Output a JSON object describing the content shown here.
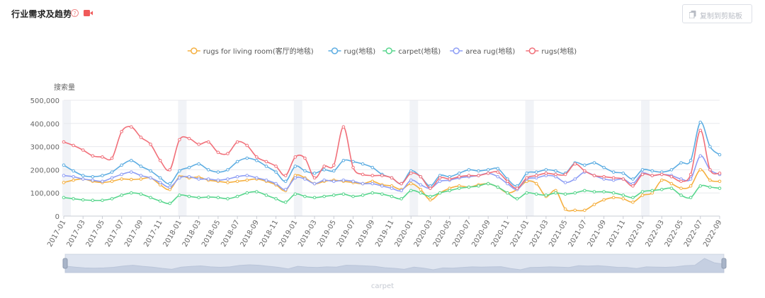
{
  "header": {
    "title": "行业需求及趋势",
    "help_icon": "question-circle-icon",
    "video_icon": "video-camera-icon",
    "accent_color": "#f05a5a"
  },
  "toolbar": {
    "copy_label": "复制到剪贴板",
    "copy_icon": "clipboard-icon"
  },
  "chart_data": {
    "type": "line",
    "ylabel": "搜索量",
    "xlabel": "",
    "ylim": [
      0,
      500000
    ],
    "yticks": [
      "0",
      "100,000",
      "200,000",
      "300,000",
      "400,000",
      "500,000"
    ],
    "grid": true,
    "legend": "top-center",
    "smooth": true,
    "x_tick_labels": [
      "2017-01",
      "2017-03",
      "2017-05",
      "2017-07",
      "2017-09",
      "2017-11",
      "2018-01",
      "2018-03",
      "2018-05",
      "2018-07",
      "2018-09",
      "2018-11",
      "2019-01",
      "2019-03",
      "2019-05",
      "2019-07",
      "2019-09",
      "2019-11",
      "2020-01",
      "2020-03",
      "2020-05",
      "2020-07",
      "2020-09",
      "2020-11",
      "2021-01",
      "2021-03",
      "2021-05",
      "2021-07",
      "2021-09",
      "2021-11",
      "2022-01",
      "2022-03",
      "2022-05",
      "2022-07",
      "2022-09"
    ],
    "months": [
      "2017-01",
      "2017-02",
      "2017-03",
      "2017-04",
      "2017-05",
      "2017-06",
      "2017-07",
      "2017-08",
      "2017-09",
      "2017-10",
      "2017-11",
      "2017-12",
      "2018-01",
      "2018-02",
      "2018-03",
      "2018-04",
      "2018-05",
      "2018-06",
      "2018-07",
      "2018-08",
      "2018-09",
      "2018-10",
      "2018-11",
      "2018-12",
      "2019-01",
      "2019-02",
      "2019-03",
      "2019-04",
      "2019-05",
      "2019-06",
      "2019-07",
      "2019-08",
      "2019-09",
      "2019-10",
      "2019-11",
      "2019-12",
      "2020-01",
      "2020-02",
      "2020-03",
      "2020-04",
      "2020-05",
      "2020-06",
      "2020-07",
      "2020-08",
      "2020-09",
      "2020-10",
      "2020-11",
      "2020-12",
      "2021-01",
      "2021-02",
      "2021-03",
      "2021-04",
      "2021-05",
      "2021-06",
      "2021-07",
      "2021-08",
      "2021-09",
      "2021-10",
      "2021-11",
      "2021-12",
      "2022-01",
      "2022-02",
      "2022-03",
      "2022-04",
      "2022-05",
      "2022-06",
      "2022-07",
      "2022-08",
      "2022-09"
    ],
    "series": [
      {
        "name": "rugs for living room(客厅的地毯)",
        "color": "#f5b041",
        "values": [
          145000,
          155000,
          160000,
          150000,
          145000,
          150000,
          160000,
          158000,
          160000,
          165000,
          135000,
          115000,
          170000,
          165000,
          168000,
          155000,
          150000,
          145000,
          150000,
          155000,
          160000,
          150000,
          135000,
          110000,
          175000,
          165000,
          140000,
          150000,
          155000,
          150000,
          145000,
          140000,
          150000,
          135000,
          130000,
          115000,
          140000,
          115000,
          70000,
          100000,
          120000,
          130000,
          125000,
          135000,
          140000,
          125000,
          100000,
          115000,
          150000,
          140000,
          85000,
          110000,
          30000,
          25000,
          25000,
          50000,
          70000,
          80000,
          75000,
          60000,
          90000,
          100000,
          155000,
          140000,
          120000,
          130000,
          200000,
          155000,
          150000
        ]
      },
      {
        "name": "rug(地毯)",
        "color": "#5dade2",
        "values": [
          220000,
          195000,
          175000,
          170000,
          175000,
          190000,
          220000,
          240000,
          215000,
          195000,
          165000,
          140000,
          195000,
          210000,
          225000,
          200000,
          190000,
          200000,
          235000,
          250000,
          240000,
          215000,
          190000,
          150000,
          215000,
          195000,
          185000,
          200000,
          195000,
          240000,
          235000,
          225000,
          210000,
          180000,
          165000,
          140000,
          195000,
          170000,
          130000,
          175000,
          170000,
          185000,
          200000,
          195000,
          200000,
          205000,
          160000,
          130000,
          185000,
          190000,
          200000,
          195000,
          185000,
          230000,
          220000,
          230000,
          210000,
          190000,
          185000,
          160000,
          200000,
          195000,
          190000,
          200000,
          230000,
          240000,
          405000,
          300000,
          265000
        ]
      },
      {
        "name": "carpet(地毯)",
        "color": "#58d68d",
        "values": [
          80000,
          75000,
          70000,
          68000,
          68000,
          75000,
          90000,
          100000,
          95000,
          80000,
          65000,
          55000,
          90000,
          85000,
          80000,
          82000,
          80000,
          75000,
          85000,
          100000,
          105000,
          90000,
          75000,
          60000,
          95000,
          85000,
          80000,
          85000,
          90000,
          95000,
          85000,
          90000,
          100000,
          95000,
          85000,
          75000,
          110000,
          100000,
          85000,
          100000,
          110000,
          120000,
          125000,
          130000,
          140000,
          125000,
          100000,
          75000,
          100000,
          95000,
          90000,
          100000,
          95000,
          100000,
          110000,
          105000,
          105000,
          100000,
          90000,
          80000,
          105000,
          110000,
          115000,
          120000,
          90000,
          80000,
          130000,
          125000,
          120000
        ]
      },
      {
        "name": "area rug(地毯)",
        "color": "#8e9ef5",
        "values": [
          175000,
          170000,
          160000,
          155000,
          150000,
          165000,
          180000,
          190000,
          175000,
          165000,
          145000,
          125000,
          165000,
          170000,
          160000,
          160000,
          155000,
          160000,
          170000,
          175000,
          165000,
          155000,
          140000,
          115000,
          165000,
          160000,
          140000,
          155000,
          150000,
          155000,
          150000,
          140000,
          140000,
          130000,
          120000,
          110000,
          155000,
          135000,
          120000,
          150000,
          155000,
          165000,
          170000,
          175000,
          185000,
          170000,
          140000,
          115000,
          160000,
          165000,
          175000,
          170000,
          145000,
          160000,
          190000,
          175000,
          160000,
          155000,
          160000,
          140000,
          185000,
          175000,
          180000,
          175000,
          160000,
          160000,
          260000,
          200000,
          180000
        ]
      },
      {
        "name": "rugs(地毯)",
        "color": "#f1707a",
        "values": [
          320000,
          305000,
          285000,
          260000,
          255000,
          250000,
          365000,
          385000,
          340000,
          310000,
          240000,
          200000,
          330000,
          335000,
          310000,
          320000,
          275000,
          270000,
          320000,
          305000,
          255000,
          235000,
          215000,
          175000,
          255000,
          250000,
          165000,
          215000,
          220000,
          385000,
          210000,
          180000,
          175000,
          175000,
          165000,
          140000,
          185000,
          170000,
          120000,
          165000,
          160000,
          170000,
          175000,
          175000,
          185000,
          190000,
          150000,
          120000,
          165000,
          175000,
          185000,
          180000,
          180000,
          225000,
          195000,
          175000,
          170000,
          165000,
          160000,
          130000,
          180000,
          175000,
          180000,
          170000,
          150000,
          180000,
          370000,
          200000,
          185000
        ]
      }
    ],
    "dataZoom": {
      "label": "carpet",
      "start": 0,
      "end": 100
    }
  }
}
